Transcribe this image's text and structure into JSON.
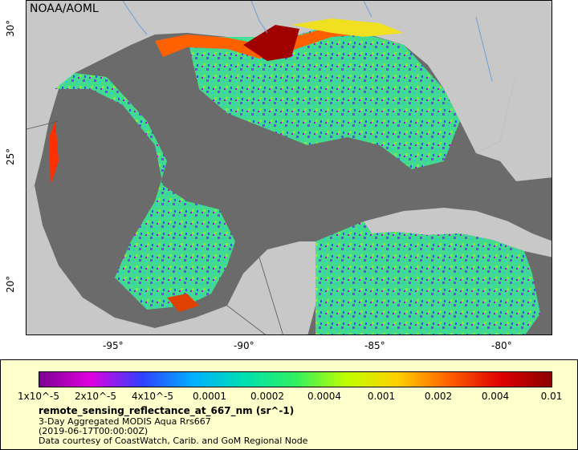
{
  "map": {
    "source": "NOAA/AOML",
    "x_ticks": [
      "-95°",
      "-90°",
      "-85°",
      "-80°"
    ],
    "y_ticks": [
      "30°",
      "25°",
      "20°"
    ],
    "land_color": "#c8c8c8",
    "nodata_color": "#6b6b6b"
  },
  "legend": {
    "ticks": [
      "1x10^-5",
      "2x10^-5",
      "4x10^-5",
      "0.0001",
      "0.0002",
      "0.0004",
      "0.001",
      "0.002",
      "0.004",
      "0.01"
    ],
    "colors": [
      "#7a0090",
      "#e000e0",
      "#3040ff",
      "#00b0ff",
      "#00e0b0",
      "#30f060",
      "#c0ff00",
      "#ffd000",
      "#ff6000",
      "#e00000",
      "#8b0000"
    ],
    "variable": "remote_sensing_reflectance_at_667_nm (sr^-1)",
    "title": "3-Day Aggregated MODIS Aqua Rrs667",
    "time": "(2019-06-17T00:00:00Z)",
    "credit": "Data courtesy of CoastWatch, Carib. and GoM Regional Node"
  }
}
